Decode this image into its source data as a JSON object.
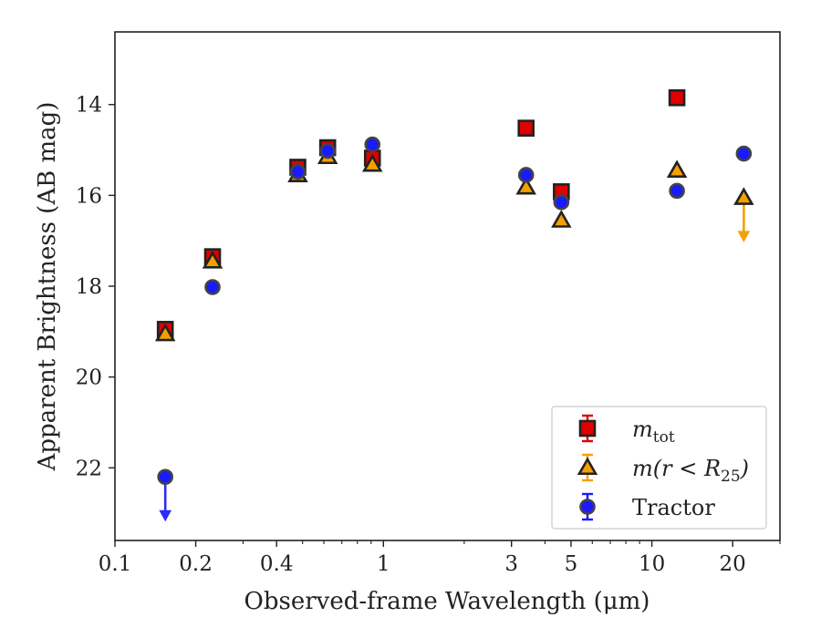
{
  "chart_data": {
    "type": "scatter",
    "xlabel": "Observed-frame Wavelength (μm)",
    "ylabel": "Apparent Brightness (AB mag)",
    "xscale": "log",
    "yaxis_inverted": true,
    "xlim": [
      0.1,
      30
    ],
    "ylim": [
      23.6,
      12.4
    ],
    "xticks": [
      {
        "value": 0.1,
        "label": "0.1"
      },
      {
        "value": 0.2,
        "label": "0.2"
      },
      {
        "value": 0.4,
        "label": "0.4"
      },
      {
        "value": 1,
        "label": "1"
      },
      {
        "value": 3,
        "label": "3"
      },
      {
        "value": 5,
        "label": "5"
      },
      {
        "value": 10,
        "label": "10"
      },
      {
        "value": 20,
        "label": "20"
      }
    ],
    "yticks": [
      {
        "value": 14,
        "label": "14"
      },
      {
        "value": 16,
        "label": "16"
      },
      {
        "value": 18,
        "label": "18"
      },
      {
        "value": 20,
        "label": "20"
      },
      {
        "value": 22,
        "label": "22"
      }
    ],
    "legend_position": "lower-right",
    "series": [
      {
        "name": "m_tot",
        "legend_main": "m",
        "legend_sub": "tot",
        "marker": "square",
        "color": "#e00000",
        "edge": "#222222",
        "points": [
          {
            "x": 0.154,
            "y": 18.95
          },
          {
            "x": 0.231,
            "y": 17.35
          },
          {
            "x": 0.48,
            "y": 15.38
          },
          {
            "x": 0.62,
            "y": 14.95
          },
          {
            "x": 0.91,
            "y": 15.18
          },
          {
            "x": 3.4,
            "y": 14.52
          },
          {
            "x": 4.6,
            "y": 15.92
          },
          {
            "x": 12.4,
            "y": 13.85
          }
        ]
      },
      {
        "name": "m(r < R25)",
        "legend_main": "m(r < R",
        "legend_sub": "25",
        "legend_tail": ")",
        "marker": "triangle",
        "color": "#f5a000",
        "edge": "#222222",
        "points": [
          {
            "x": 0.154,
            "y": 19.05
          },
          {
            "x": 0.231,
            "y": 17.45
          },
          {
            "x": 0.48,
            "y": 15.55
          },
          {
            "x": 0.62,
            "y": 15.15
          },
          {
            "x": 0.91,
            "y": 15.32
          },
          {
            "x": 3.4,
            "y": 15.82
          },
          {
            "x": 4.6,
            "y": 16.55
          },
          {
            "x": 12.4,
            "y": 15.45
          },
          {
            "x": 22,
            "y": 16.05,
            "upper_limit": true
          }
        ]
      },
      {
        "name": "Tractor",
        "legend_main": "Tractor",
        "marker": "circle",
        "color": "#1a1aff",
        "edge": "#444444",
        "points": [
          {
            "x": 0.154,
            "y": 22.2,
            "upper_limit": true
          },
          {
            "x": 0.231,
            "y": 18.02
          },
          {
            "x": 0.48,
            "y": 15.48
          },
          {
            "x": 0.62,
            "y": 15.02
          },
          {
            "x": 0.91,
            "y": 14.88
          },
          {
            "x": 3.4,
            "y": 15.55
          },
          {
            "x": 4.6,
            "y": 16.15
          },
          {
            "x": 12.4,
            "y": 15.9
          },
          {
            "x": 22,
            "y": 15.08
          }
        ]
      }
    ]
  }
}
